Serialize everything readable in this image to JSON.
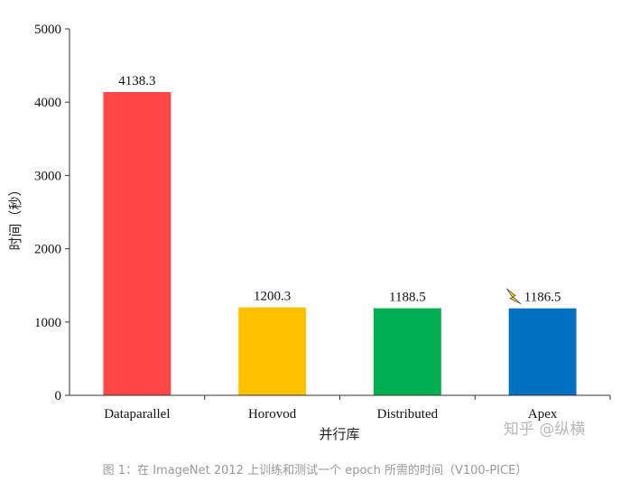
{
  "chart_data": {
    "type": "bar",
    "categories": [
      "Dataparallel",
      "Horovod",
      "Distributed",
      "Apex"
    ],
    "values": [
      4138.3,
      1200.3,
      1188.5,
      1186.5
    ],
    "data_labels": [
      "4138.3",
      "1200.3",
      "1188.5",
      "1186.5"
    ],
    "colors": [
      "#ff4747",
      "#ffc000",
      "#00b050",
      "#0070c0"
    ],
    "ylim": [
      0,
      5000
    ],
    "yticks": [
      "0",
      "1000",
      "2000",
      "3000",
      "4000",
      "5000"
    ],
    "ylabel": "时间（秒）",
    "xlabel": "并行库",
    "title": "",
    "grid": false,
    "annotation_icon": "lightning-icon"
  },
  "watermark": "知乎 @纵横",
  "caption": "图 1：在 ImageNet 2012 上训练和测试一个 epoch 所需的时间（V100-PICE）"
}
